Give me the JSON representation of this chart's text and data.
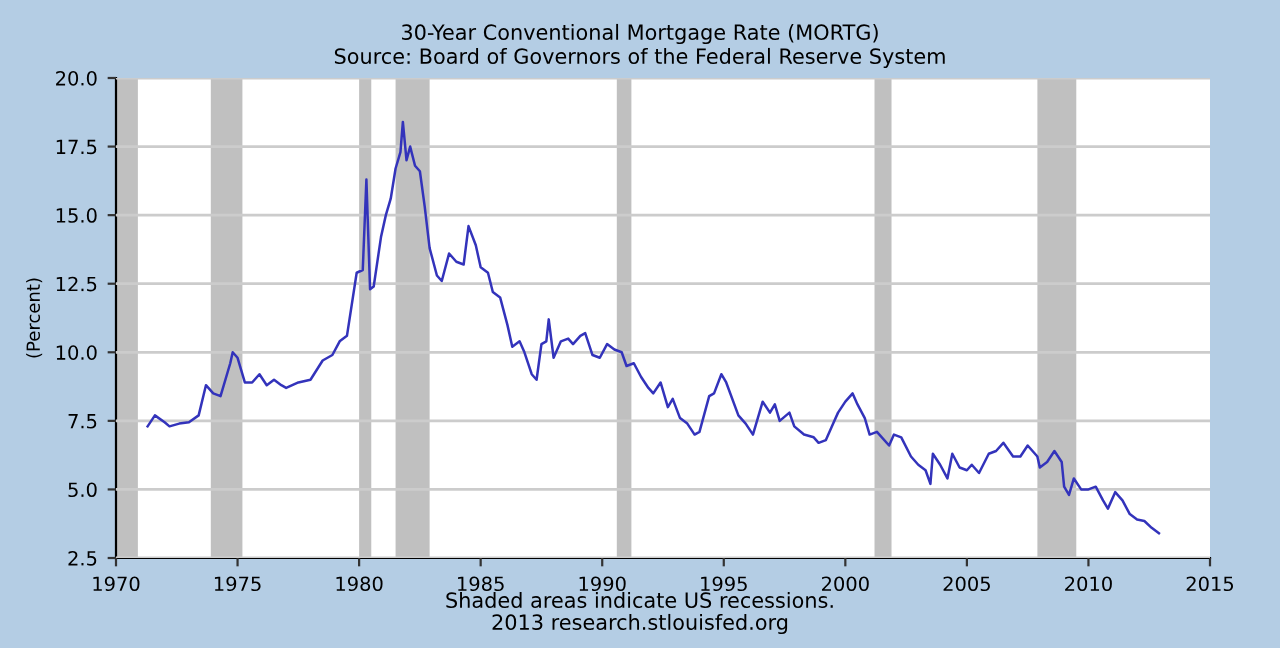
{
  "chart_data": {
    "type": "line",
    "title": "30-Year Conventional Mortgage Rate (MORTG)",
    "subtitle": "Source: Board of Governors of the Federal Reserve System",
    "ylabel": "(Percent)",
    "annotations": [
      "Shaded areas indicate US recessions.",
      "2013 research.stlouisfed.org"
    ],
    "x": [
      1971.3,
      1971.6,
      1972.0,
      1972.2,
      1972.6,
      1973.0,
      1973.4,
      1973.7,
      1974.0,
      1974.3,
      1974.7,
      1974.8,
      1975.0,
      1975.3,
      1975.6,
      1975.9,
      1976.2,
      1976.5,
      1976.8,
      1977.0,
      1977.5,
      1978.0,
      1978.5,
      1978.9,
      1979.2,
      1979.5,
      1979.9,
      1980.15,
      1980.3,
      1980.45,
      1980.6,
      1980.9,
      1981.1,
      1981.3,
      1981.5,
      1981.7,
      1981.8,
      1981.95,
      1982.1,
      1982.3,
      1982.5,
      1982.7,
      1982.9,
      1983.2,
      1983.4,
      1983.7,
      1984.0,
      1984.3,
      1984.5,
      1984.8,
      1985.0,
      1985.3,
      1985.5,
      1985.8,
      1986.1,
      1986.3,
      1986.6,
      1986.8,
      1987.1,
      1987.3,
      1987.5,
      1987.7,
      1987.8,
      1988.0,
      1988.3,
      1988.6,
      1988.8,
      1989.1,
      1989.3,
      1989.6,
      1989.9,
      1990.2,
      1990.5,
      1990.8,
      1991.0,
      1991.3,
      1991.6,
      1991.9,
      1992.1,
      1992.4,
      1992.7,
      1992.9,
      1993.2,
      1993.5,
      1993.8,
      1994.0,
      1994.4,
      1994.6,
      1994.9,
      1995.1,
      1995.6,
      1995.9,
      1996.2,
      1996.6,
      1996.9,
      1997.1,
      1997.3,
      1997.7,
      1997.9,
      1998.3,
      1998.7,
      1998.9,
      1999.2,
      1999.5,
      1999.7,
      2000.0,
      2000.3,
      2000.5,
      2000.8,
      2001.0,
      2001.3,
      2001.8,
      2002.0,
      2002.3,
      2002.7,
      2003.0,
      2003.3,
      2003.5,
      2003.6,
      2003.9,
      2004.2,
      2004.4,
      2004.7,
      2005.0,
      2005.2,
      2005.5,
      2005.9,
      2006.2,
      2006.5,
      2006.9,
      2007.2,
      2007.5,
      2007.9,
      2008.0,
      2008.3,
      2008.6,
      2008.9,
      2009.0,
      2009.2,
      2009.4,
      2009.7,
      2010.0,
      2010.3,
      2010.6,
      2010.8,
      2011.1,
      2011.4,
      2011.7,
      2012.0,
      2012.3,
      2012.6,
      2012.9
    ],
    "series": [
      {
        "color": "#3333bb",
        "values": [
          7.3,
          7.7,
          7.45,
          7.3,
          7.4,
          7.45,
          7.7,
          8.8,
          8.5,
          8.4,
          9.6,
          10.0,
          9.8,
          8.9,
          8.9,
          9.2,
          8.8,
          9.0,
          8.8,
          8.7,
          8.9,
          9.0,
          9.7,
          9.9,
          10.4,
          10.6,
          12.9,
          13.0,
          16.3,
          12.3,
          12.4,
          14.2,
          15.0,
          15.6,
          16.7,
          17.3,
          18.4,
          17.0,
          17.5,
          16.8,
          16.6,
          15.3,
          13.8,
          12.8,
          12.6,
          13.6,
          13.3,
          13.2,
          14.6,
          13.9,
          13.1,
          12.9,
          12.2,
          12.0,
          11.0,
          10.2,
          10.4,
          10.0,
          9.2,
          9.0,
          10.3,
          10.4,
          11.2,
          9.8,
          10.4,
          10.5,
          10.3,
          10.6,
          10.7,
          9.9,
          9.8,
          10.3,
          10.1,
          10.0,
          9.5,
          9.6,
          9.1,
          8.7,
          8.5,
          8.9,
          8.0,
          8.3,
          7.6,
          7.4,
          7.0,
          7.1,
          8.4,
          8.5,
          9.2,
          8.9,
          7.7,
          7.4,
          7.0,
          8.2,
          7.8,
          8.1,
          7.5,
          7.8,
          7.3,
          7.0,
          6.9,
          6.7,
          6.8,
          7.4,
          7.8,
          8.2,
          8.5,
          8.1,
          7.6,
          7.0,
          7.1,
          6.6,
          7.0,
          6.9,
          6.2,
          5.9,
          5.7,
          5.2,
          6.3,
          5.9,
          5.4,
          6.3,
          5.8,
          5.7,
          5.9,
          5.6,
          6.3,
          6.4,
          6.7,
          6.2,
          6.2,
          6.6,
          6.2,
          5.8,
          6.0,
          6.4,
          6.0,
          5.1,
          4.8,
          5.4,
          5.0,
          5.0,
          5.1,
          4.6,
          4.3,
          4.9,
          4.6,
          4.1,
          3.9,
          3.85,
          3.6,
          3.4
        ]
      }
    ],
    "xlim": [
      1970,
      2015
    ],
    "xticks": [
      1970,
      1975,
      1980,
      1985,
      1990,
      1995,
      2000,
      2005,
      2010,
      2015
    ],
    "ylim": [
      2.5,
      20.0
    ],
    "yticks": [
      {
        "value": 2.5,
        "label": "2.5"
      },
      {
        "value": 5,
        "label": "5.0"
      },
      {
        "value": 7.5,
        "label": "7.5"
      },
      {
        "value": 10,
        "label": "10.0"
      },
      {
        "value": 12.5,
        "label": "12.5"
      },
      {
        "value": 15,
        "label": "15.0"
      },
      {
        "value": 17.5,
        "label": "17.5"
      },
      {
        "value": 20,
        "label": "20.0"
      }
    ],
    "grid": "y",
    "bands": [
      {
        "axis": "x",
        "from": 1970.0,
        "to": 1970.9,
        "color": "#c0c0c0"
      },
      {
        "axis": "x",
        "from": 1973.9,
        "to": 1975.2,
        "color": "#c0c0c0"
      },
      {
        "axis": "x",
        "from": 1980.0,
        "to": 1980.5,
        "color": "#c0c0c0"
      },
      {
        "axis": "x",
        "from": 1981.5,
        "to": 1982.9,
        "color": "#c0c0c0"
      },
      {
        "axis": "x",
        "from": 1990.6,
        "to": 1991.2,
        "color": "#c0c0c0"
      },
      {
        "axis": "x",
        "from": 2001.2,
        "to": 2001.9,
        "color": "#c0c0c0"
      },
      {
        "axis": "x",
        "from": 2007.9,
        "to": 2009.5,
        "color": "#c0c0c0"
      }
    ]
  }
}
